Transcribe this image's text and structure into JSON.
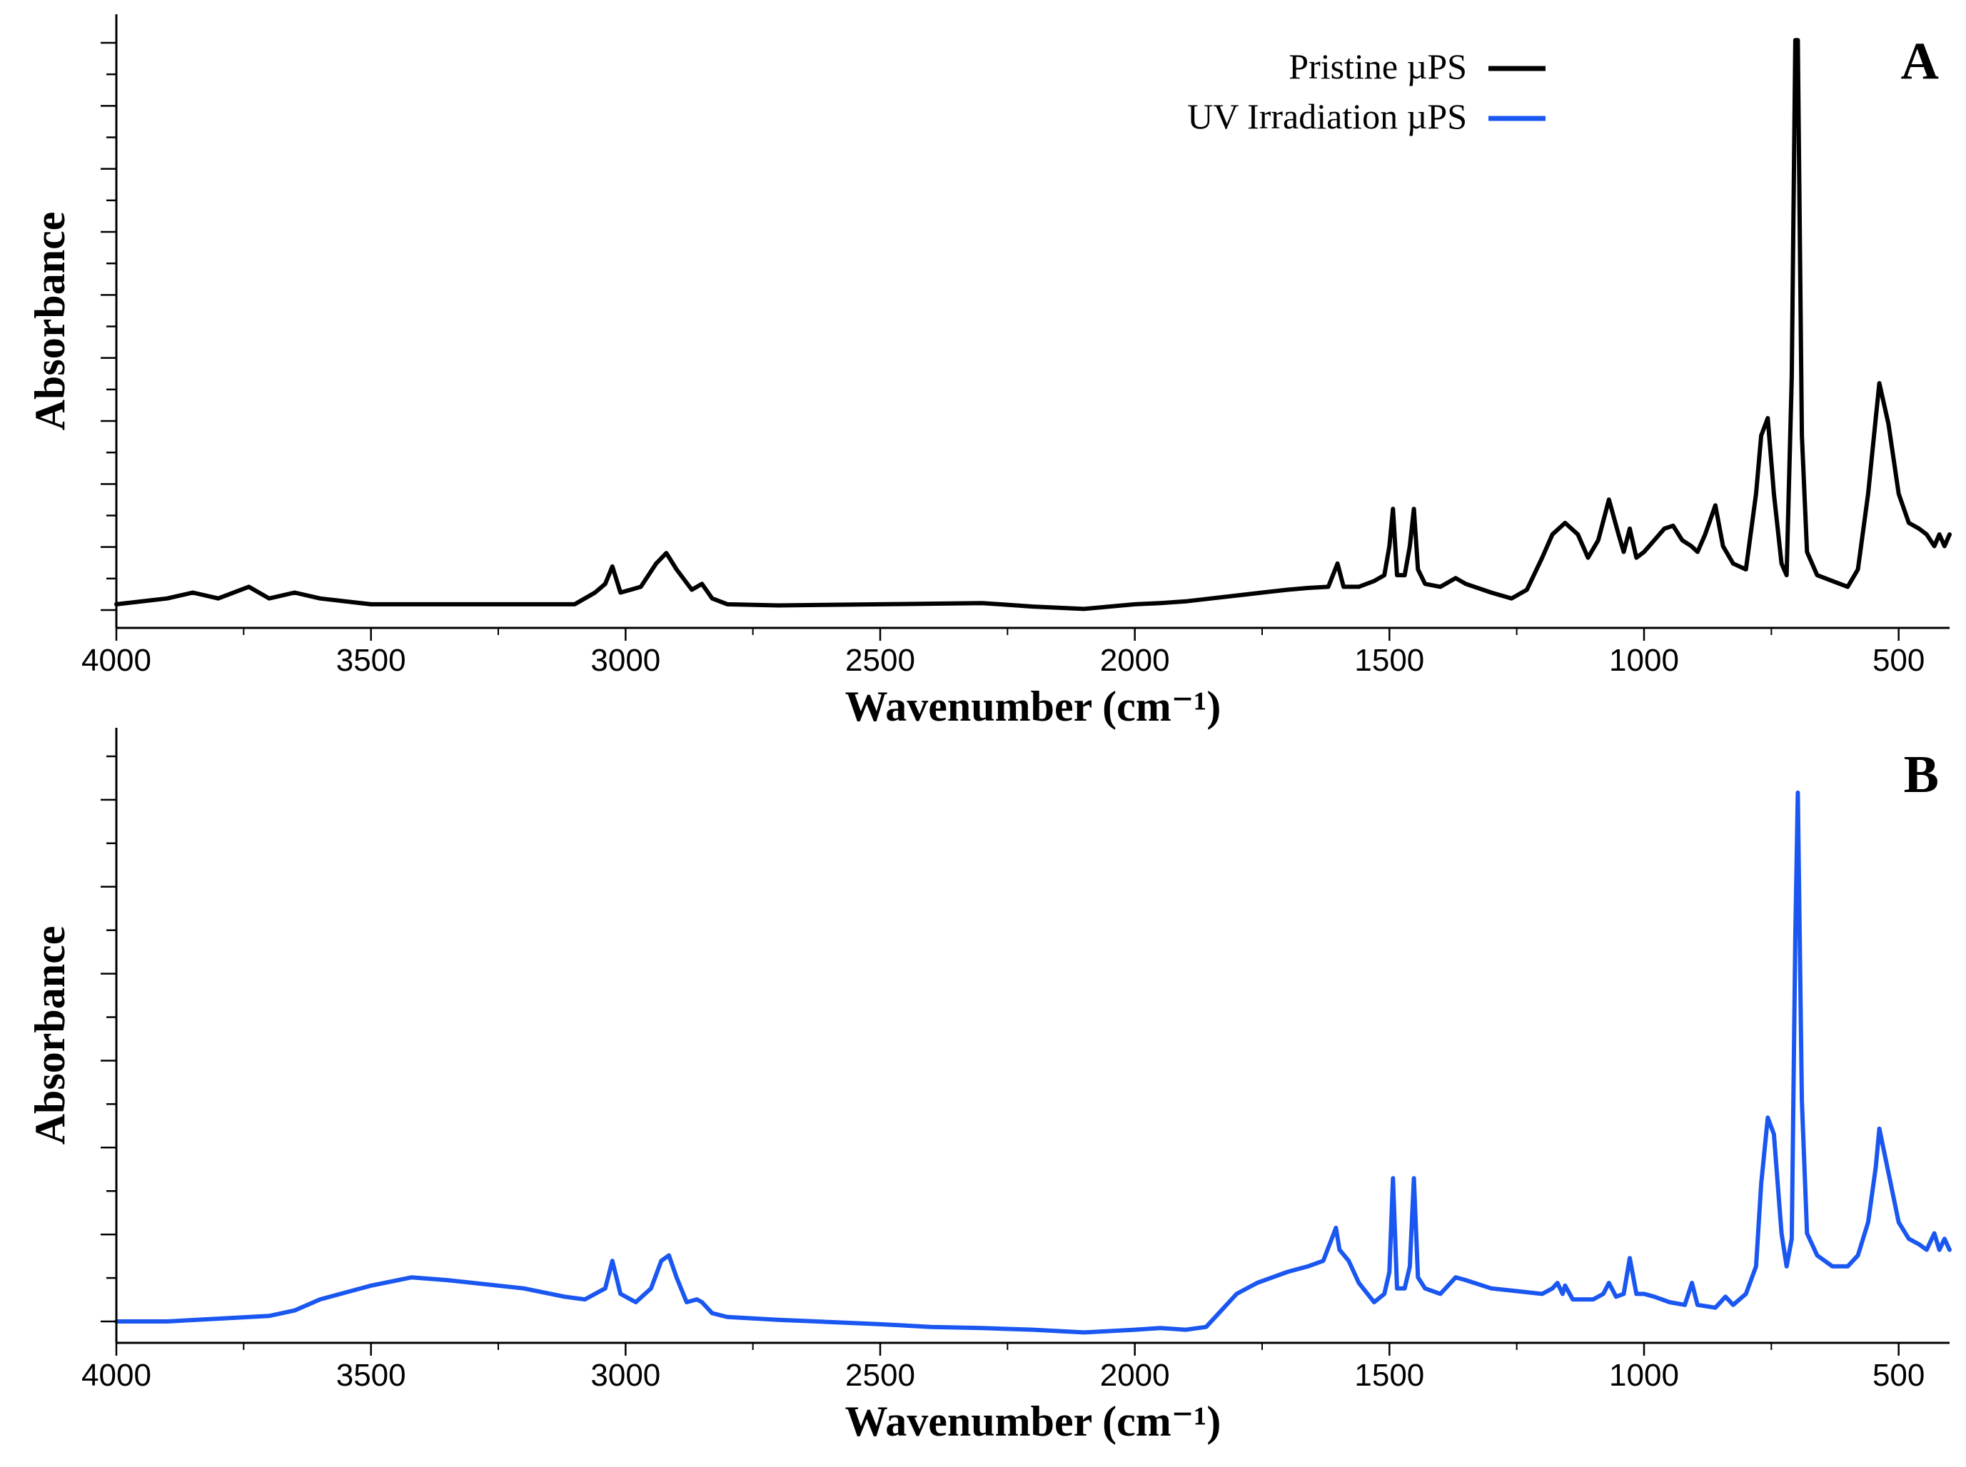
{
  "chart_data": [
    {
      "type": "line",
      "panel_label": "A",
      "xlabel": "Wavenumber (cm⁻¹)",
      "ylabel": "Absorbance",
      "xlim": [
        4000,
        400
      ],
      "x_reversed": true,
      "xticks": [
        4000,
        3500,
        3000,
        2500,
        2000,
        1500,
        1000,
        500
      ],
      "ylim": [
        0,
        1.0
      ],
      "y_tick_labels_shown": false,
      "y_minor_ticks": 19,
      "grid": false,
      "legend": {
        "placement": "top-right",
        "entries": [
          {
            "label": "Pristine µPS",
            "color": "#000000"
          },
          {
            "label": "UV Irradiation µPS",
            "color": "#1a56f0"
          }
        ]
      },
      "series": [
        {
          "color": "#000000",
          "x": [
            4000,
            3900,
            3850,
            3800,
            3740,
            3700,
            3650,
            3600,
            3500,
            3300,
            3100,
            3060,
            3040,
            3026,
            3010,
            2970,
            2940,
            2920,
            2900,
            2870,
            2850,
            2830,
            2800,
            2700,
            2500,
            2300,
            2200,
            2100,
            2000,
            1950,
            1900,
            1850,
            1800,
            1750,
            1700,
            1660,
            1620,
            1602,
            1590,
            1560,
            1530,
            1510,
            1500,
            1493,
            1485,
            1470,
            1460,
            1452,
            1444,
            1430,
            1400,
            1370,
            1350,
            1300,
            1260,
            1230,
            1200,
            1180,
            1155,
            1130,
            1110,
            1090,
            1069,
            1050,
            1040,
            1028,
            1015,
            1000,
            980,
            960,
            943,
            925,
            907,
            895,
            880,
            860,
            845,
            825,
            800,
            780,
            770,
            757,
            745,
            730,
            720,
            710,
            703,
            698,
            690,
            680,
            660,
            630,
            600,
            580,
            560,
            545,
            538,
            520,
            500,
            480,
            460,
            445,
            430,
            420,
            410,
            400
          ],
          "y": [
            0.01,
            0.02,
            0.03,
            0.02,
            0.04,
            0.02,
            0.03,
            0.02,
            0.01,
            0.01,
            0.01,
            0.03,
            0.045,
            0.075,
            0.03,
            0.04,
            0.08,
            0.098,
            0.07,
            0.035,
            0.045,
            0.02,
            0.01,
            0.008,
            0.01,
            0.012,
            0.006,
            0.002,
            0.01,
            0.012,
            0.015,
            0.02,
            0.025,
            0.03,
            0.035,
            0.038,
            0.04,
            0.08,
            0.04,
            0.04,
            0.05,
            0.06,
            0.11,
            0.174,
            0.06,
            0.06,
            0.11,
            0.174,
            0.07,
            0.045,
            0.04,
            0.055,
            0.045,
            0.03,
            0.02,
            0.035,
            0.09,
            0.13,
            0.15,
            0.13,
            0.09,
            0.12,
            0.19,
            0.13,
            0.1,
            0.14,
            0.09,
            0.1,
            0.12,
            0.14,
            0.145,
            0.12,
            0.11,
            0.1,
            0.13,
            0.18,
            0.11,
            0.08,
            0.07,
            0.2,
            0.3,
            0.33,
            0.2,
            0.08,
            0.06,
            0.4,
            0.98,
            0.98,
            0.3,
            0.1,
            0.06,
            0.05,
            0.04,
            0.07,
            0.2,
            0.33,
            0.39,
            0.32,
            0.2,
            0.15,
            0.14,
            0.13,
            0.11,
            0.13,
            0.11,
            0.13
          ]
        }
      ]
    },
    {
      "type": "line",
      "panel_label": "B",
      "xlabel": "Wavenumber (cm⁻¹)",
      "ylabel": "Absorbance",
      "xlim": [
        4000,
        400
      ],
      "x_reversed": true,
      "xticks": [
        4000,
        3500,
        3000,
        2500,
        2000,
        1500,
        1000,
        500
      ],
      "ylim": [
        0,
        1.0
      ],
      "y_tick_labels_shown": false,
      "y_minor_ticks": 14,
      "grid": false,
      "series": [
        {
          "color": "#1a56f0",
          "x": [
            4000,
            3900,
            3800,
            3700,
            3650,
            3600,
            3500,
            3420,
            3350,
            3200,
            3120,
            3080,
            3060,
            3040,
            3026,
            3010,
            2980,
            2950,
            2930,
            2915,
            2900,
            2880,
            2860,
            2850,
            2830,
            2800,
            2700,
            2500,
            2400,
            2300,
            2200,
            2100,
            2000,
            1950,
            1900,
            1860,
            1830,
            1800,
            1760,
            1700,
            1660,
            1630,
            1605,
            1598,
            1580,
            1560,
            1530,
            1510,
            1500,
            1493,
            1485,
            1470,
            1460,
            1452,
            1444,
            1430,
            1400,
            1370,
            1350,
            1300,
            1250,
            1200,
            1180,
            1170,
            1160,
            1155,
            1140,
            1100,
            1080,
            1069,
            1055,
            1040,
            1028,
            1015,
            1000,
            980,
            950,
            920,
            906,
            895,
            860,
            840,
            825,
            800,
            780,
            770,
            757,
            745,
            730,
            720,
            710,
            703,
            698,
            690,
            680,
            660,
            630,
            600,
            580,
            560,
            545,
            538,
            520,
            500,
            480,
            460,
            445,
            430,
            420,
            410,
            400
          ],
          "y": [
            0.0,
            0.0,
            0.005,
            0.01,
            0.02,
            0.04,
            0.065,
            0.08,
            0.075,
            0.06,
            0.045,
            0.04,
            0.05,
            0.06,
            0.11,
            0.05,
            0.035,
            0.06,
            0.11,
            0.12,
            0.08,
            0.035,
            0.04,
            0.035,
            0.015,
            0.008,
            0.003,
            -0.005,
            -0.01,
            -0.012,
            -0.015,
            -0.02,
            -0.015,
            -0.012,
            -0.015,
            -0.01,
            0.02,
            0.05,
            0.07,
            0.09,
            0.1,
            0.11,
            0.17,
            0.13,
            0.11,
            0.07,
            0.035,
            0.05,
            0.09,
            0.26,
            0.06,
            0.06,
            0.1,
            0.26,
            0.08,
            0.06,
            0.05,
            0.08,
            0.075,
            0.06,
            0.055,
            0.05,
            0.06,
            0.07,
            0.05,
            0.065,
            0.04,
            0.04,
            0.05,
            0.07,
            0.045,
            0.05,
            0.115,
            0.05,
            0.05,
            0.045,
            0.035,
            0.03,
            0.07,
            0.03,
            0.025,
            0.045,
            0.03,
            0.05,
            0.1,
            0.25,
            0.37,
            0.34,
            0.16,
            0.1,
            0.15,
            0.7,
            0.96,
            0.4,
            0.16,
            0.12,
            0.1,
            0.1,
            0.12,
            0.18,
            0.28,
            0.35,
            0.27,
            0.18,
            0.15,
            0.14,
            0.13,
            0.16,
            0.13,
            0.15,
            0.13
          ]
        }
      ]
    }
  ]
}
